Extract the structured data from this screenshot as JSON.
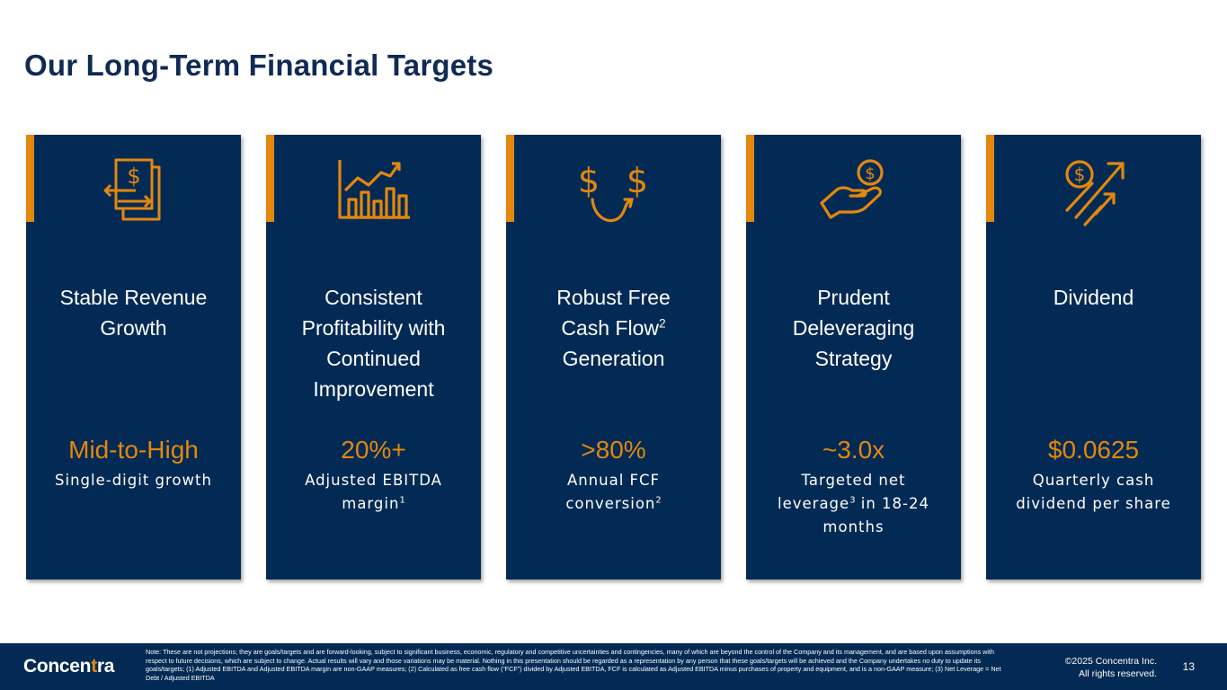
{
  "title": "Our Long-Term Financial Targets",
  "colors": {
    "navy": "#022a54",
    "orange": "#e3870f",
    "title": "#0f2a55"
  },
  "cards": [
    {
      "icon": "dollar-document-exchange-icon",
      "heading_lines": [
        "Stable Revenue",
        "Growth"
      ],
      "value": "Mid-to-High",
      "desc_lines": [
        "Single-digit growth"
      ]
    },
    {
      "icon": "growth-chart-icon",
      "heading_lines": [
        "Consistent",
        "Profitability with",
        "Continued",
        "Improvement"
      ],
      "value": "20%+",
      "desc_lines": [
        "Adjusted EBITDA",
        "margin"
      ],
      "desc_sup": "1"
    },
    {
      "icon": "dollar-flow-icon",
      "heading_lines": [
        "Robust Free",
        "Cash Flow",
        "Generation"
      ],
      "heading_sup": "2",
      "value": ">80%",
      "desc_lines": [
        "Annual FCF",
        "conversion"
      ],
      "desc_sup": "2"
    },
    {
      "icon": "hand-coin-icon",
      "heading_lines": [
        "Prudent",
        "Deleveraging",
        "Strategy"
      ],
      "value": "~3.0x",
      "desc_lines": [
        "Targeted net",
        "leverage",
        " in 18-24",
        "months"
      ],
      "desc_sup": "3"
    },
    {
      "icon": "coin-arrows-up-icon",
      "heading_lines": [
        "Dividend"
      ],
      "value": "$0.0625",
      "desc_lines": [
        "Quarterly cash",
        "dividend per share"
      ]
    }
  ],
  "footer": {
    "logo_prefix": "Concen",
    "logo_mark": "t",
    "logo_suffix": "ra",
    "note": "Note: These are not projections; they are goals/targets and are forward-looking, subject to significant business, economic, regulatory and competitive uncertainties and contingencies, many of which are beyond the control of the Company and its management, and are based upon assumptions with respect to future decisions, which are subject to change. Actual results will vary and those variations may be material. Nothing in this presentation should be regarded as a representation by any person that these goals/targets will be achieved and the Company undertakes no duty to update its goals/targets; (1) Adjusted EBITDA and Adjusted EBITDA margin are non-GAAP measures; (2) Calculated as free cash flow (“FCF”) divided by Adjusted EBITDA, FCF is calculated as Adjusted EBITDA minus purchases of property and equipment, and is a non-GAAP measure; (3) Net Leverage = Net Debt / Adjusted EBITDA",
    "copyright_line1": "©2025 Concentra Inc.",
    "copyright_line2": "All rights reserved.",
    "page_number": "13"
  }
}
